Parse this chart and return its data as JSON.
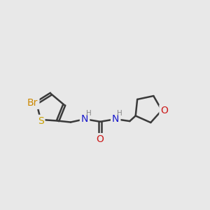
{
  "background_color": "#e8e8e8",
  "bond_color": "#3a3a3a",
  "bond_width": 1.8,
  "br_color": "#cc8800",
  "s_color": "#c8a000",
  "n_color": "#1a1acc",
  "o_color": "#cc1a1a",
  "h_color": "#888888",
  "font_size_atom": 10,
  "font_size_h": 7.5,
  "figsize": [
    3.0,
    3.0
  ],
  "dpi": 100,
  "xlim": [
    0,
    12
  ],
  "ylim": [
    0,
    12
  ]
}
